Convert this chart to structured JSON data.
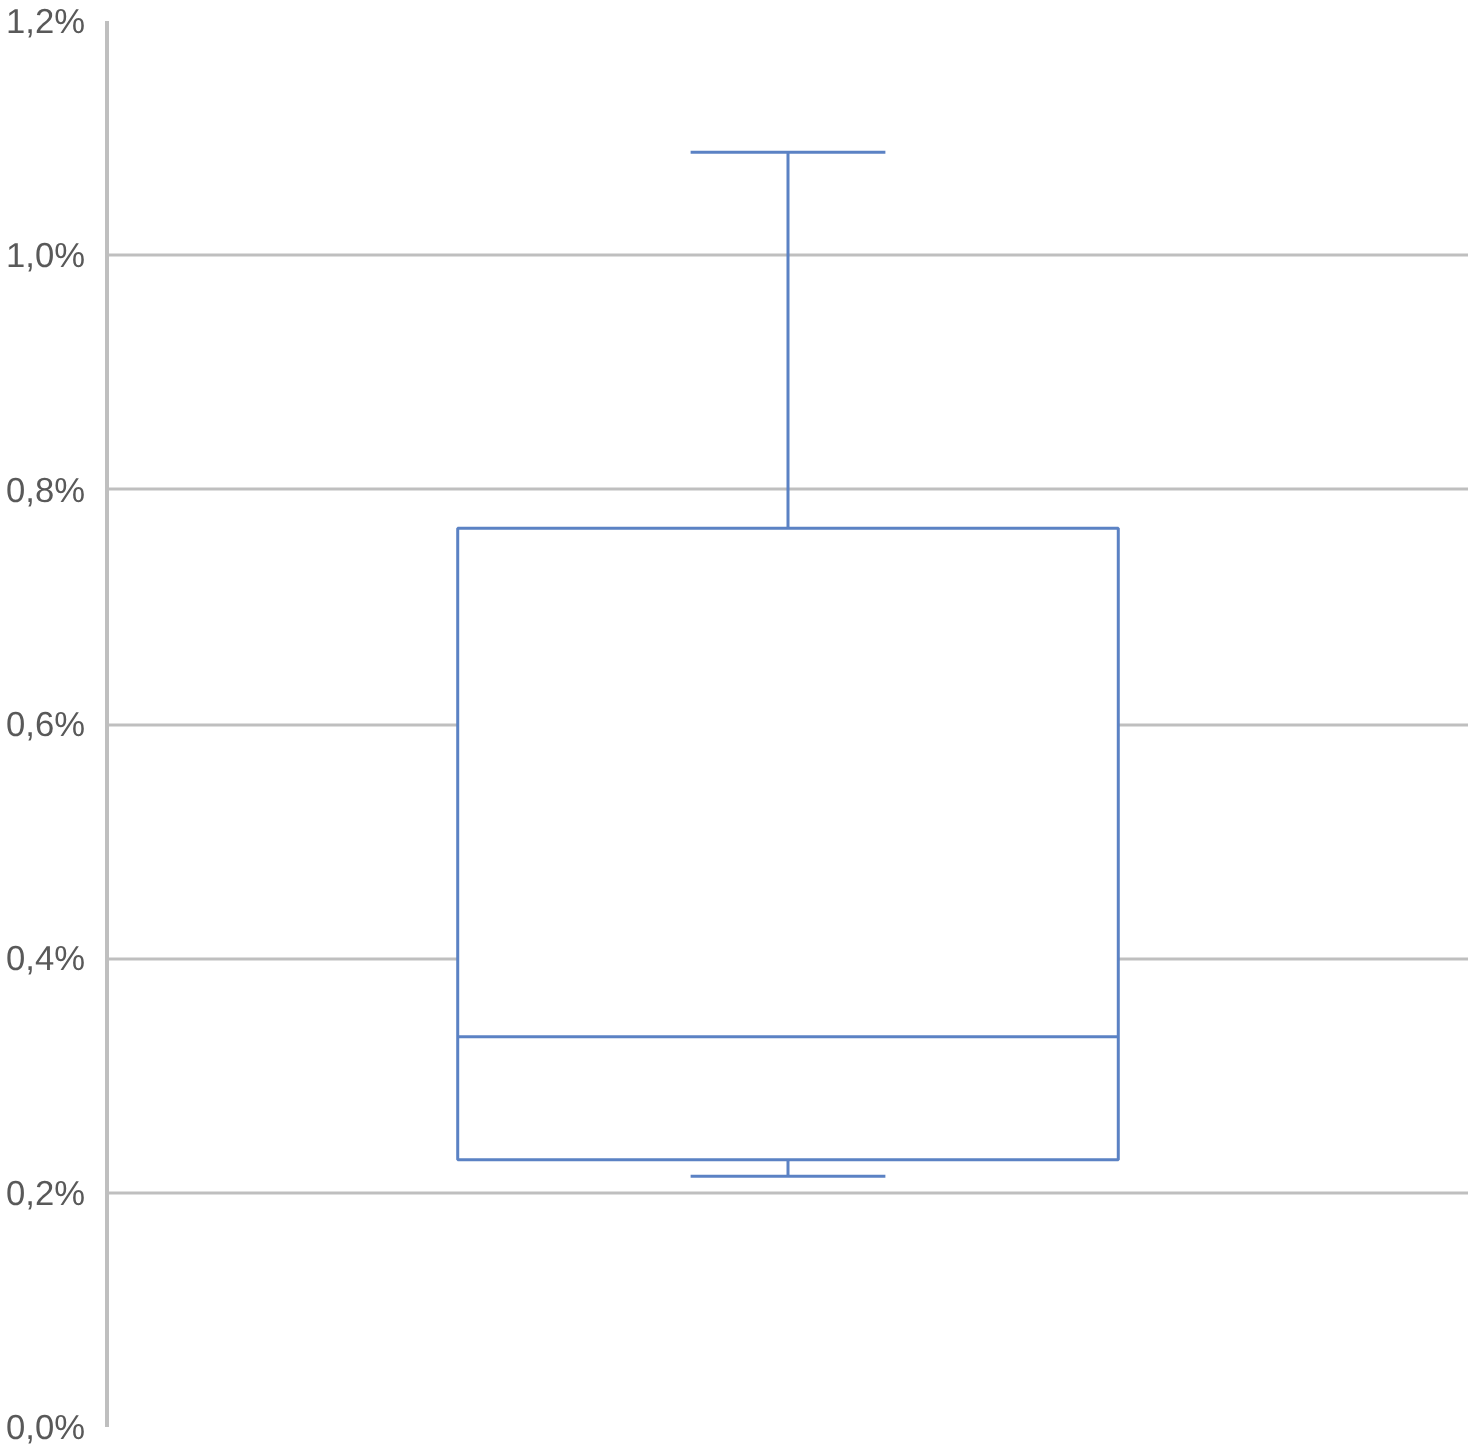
{
  "chart_data": {
    "type": "box",
    "categories": [
      null
    ],
    "series": [
      {
        "color": "#5b82c4",
        "boxes": [
          {
            "low": 0.214,
            "q1": 0.228,
            "median": 0.333,
            "q3": 0.767,
            "high": 1.088
          }
        ]
      }
    ],
    "ylim": [
      0,
      1.2
    ],
    "yticks": [
      {
        "value": 0,
        "label": "0,0%"
      },
      {
        "value": 0.2,
        "label": "0,2%"
      },
      {
        "value": 0.4,
        "label": "0,4%"
      },
      {
        "value": 0.6,
        "label": "0,6%"
      },
      {
        "value": 0.8,
        "label": "0,8%"
      },
      {
        "value": 1.0,
        "label": "1,0%"
      },
      {
        "value": 1.2,
        "label": "1,2%"
      }
    ],
    "grid": "y",
    "tick_labels": "y"
  }
}
